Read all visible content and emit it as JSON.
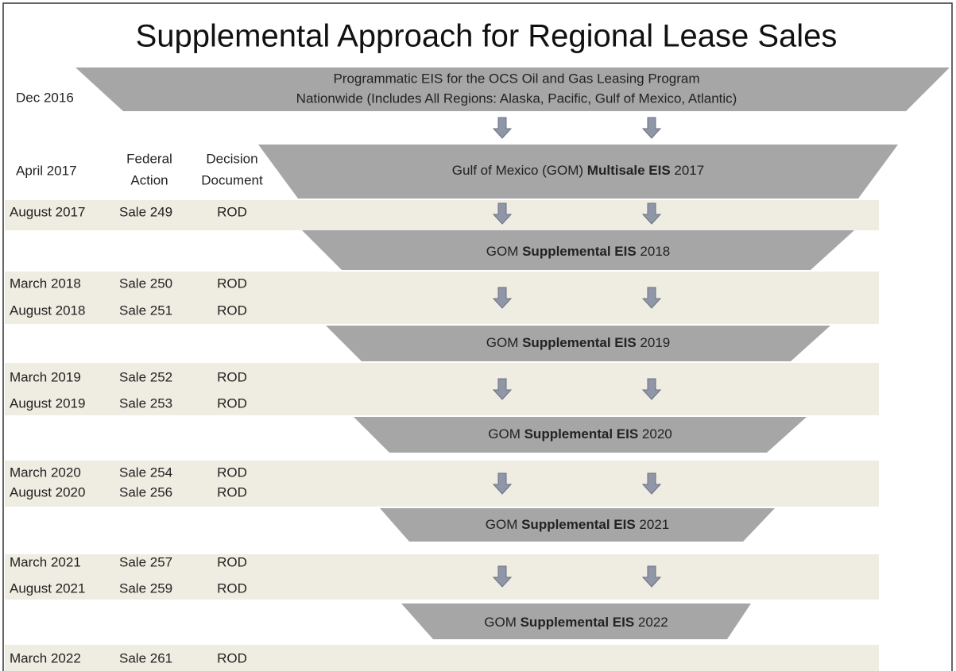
{
  "title": "Supplemental Approach for Regional Lease Sales",
  "program": {
    "date": "Dec 2016",
    "lines": [
      "Programmatic EIS for the OCS Oil and Gas Leasing Program",
      "Nationwide (Includes All Regions: Alaska, Pacific, Gulf of Mexico, Atlantic)"
    ]
  },
  "headers": {
    "federal_action": [
      "Federal",
      "Action"
    ],
    "decision_document": [
      "Decision",
      "Document"
    ]
  },
  "stages": [
    {
      "date": "April 2017",
      "label": {
        "pre": "Gulf of Mexico (GOM) ",
        "bold": "Multisale EIS",
        "post": " 2017"
      },
      "sales": [
        [
          "August 2017",
          "Sale 249",
          "ROD"
        ]
      ]
    },
    {
      "label": {
        "pre": "GOM ",
        "bold": "Supplemental EIS",
        "post": " 2018"
      },
      "sales": [
        [
          "March 2018",
          "Sale 250",
          "ROD"
        ],
        [
          "August 2018",
          "Sale 251",
          "ROD"
        ]
      ]
    },
    {
      "label": {
        "pre": "GOM ",
        "bold": "Supplemental EIS",
        "post": " 2019"
      },
      "sales": [
        [
          "March 2019",
          "Sale 252",
          "ROD"
        ],
        [
          "August 2019",
          "Sale 253",
          "ROD"
        ]
      ]
    },
    {
      "label": {
        "pre": "GOM ",
        "bold": "Supplemental EIS",
        "post": " 2020"
      },
      "sales": [
        [
          "March 2020",
          "Sale 254",
          "ROD"
        ],
        [
          "August 2020",
          "Sale 256",
          "ROD"
        ]
      ]
    },
    {
      "label": {
        "pre": "GOM ",
        "bold": "Supplemental EIS",
        "post": " 2021"
      },
      "sales": [
        [
          "March 2021",
          "Sale 257",
          "ROD"
        ],
        [
          "August 2021",
          "Sale 259",
          "ROD"
        ]
      ]
    },
    {
      "label": {
        "pre": "GOM ",
        "bold": "Supplemental EIS",
        "post": " 2022"
      },
      "sales": [
        [
          "March 2022",
          "Sale 261",
          "ROD"
        ]
      ]
    }
  ]
}
